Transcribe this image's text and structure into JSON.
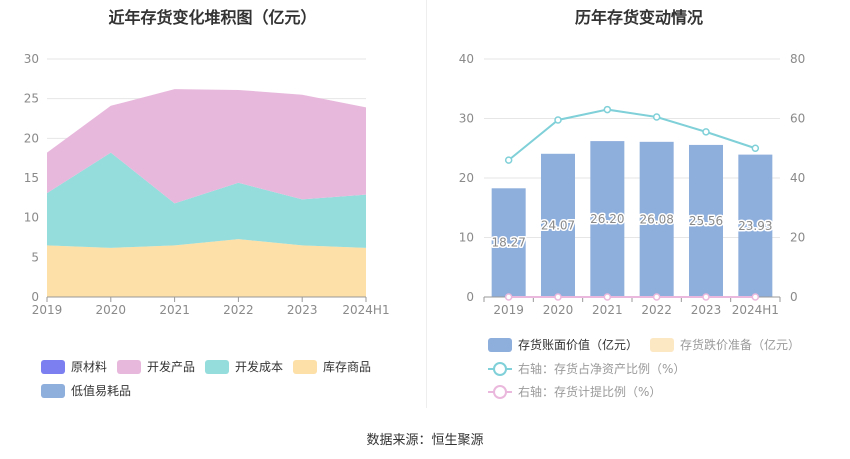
{
  "left_chart_title": "近年存货变化堆积图（亿元）",
  "right_chart_title": "历年存货变动情况",
  "source_text": "数据来源：恒生聚源",
  "chart_data": [
    {
      "type": "area",
      "stacked": true,
      "title": "近年存货变化堆积图（亿元）",
      "categories": [
        "2019",
        "2020",
        "2021",
        "2022",
        "2023",
        "2024H1"
      ],
      "ylim": [
        0,
        30
      ],
      "yticks": [
        0,
        5,
        10,
        15,
        20,
        25,
        30
      ],
      "grid": true,
      "legend_position": "bottom",
      "series": [
        {
          "name": "原材料",
          "color": "#7b7ff0",
          "values": [
            0,
            0,
            0,
            0,
            0,
            0
          ]
        },
        {
          "name": "开发产品",
          "color": "#e7b8dc",
          "values": [
            5.1,
            5.9,
            14.4,
            11.7,
            13.2,
            11.0
          ]
        },
        {
          "name": "开发成本",
          "color": "#95dcdc",
          "values": [
            6.6,
            12.0,
            5.3,
            7.1,
            5.8,
            6.7
          ]
        },
        {
          "name": "库存商品",
          "color": "#fde0a8",
          "values": [
            6.5,
            6.2,
            6.5,
            7.3,
            6.5,
            6.2
          ]
        },
        {
          "name": "低值易耗品",
          "color": "#8eaedc",
          "values": [
            0,
            0,
            0,
            0,
            0,
            0
          ]
        }
      ],
      "stack_order": [
        "库存商品",
        "开发成本",
        "开发产品",
        "原材料",
        "低值易耗品"
      ]
    },
    {
      "type": "bar",
      "title": "历年存货变动情况",
      "categories": [
        "2019",
        "2020",
        "2021",
        "2022",
        "2023",
        "2024H1"
      ],
      "ylim": [
        0,
        40
      ],
      "yticks": [
        0,
        10,
        20,
        30,
        40
      ],
      "y2lim": [
        0,
        80
      ],
      "y2ticks": [
        0,
        20,
        40,
        60,
        80
      ],
      "grid": true,
      "legend_position": "bottom",
      "series": [
        {
          "name": "存货账面价值（亿元）",
          "axis": "left",
          "kind": "bar",
          "color": "#8eaedc",
          "values": [
            18.27,
            24.07,
            26.2,
            26.08,
            25.56,
            23.93
          ],
          "labels": [
            "18.27",
            "24.07",
            "26.20",
            "26.08",
            "25.56",
            "23.93"
          ]
        },
        {
          "name": "存货跌价准备（亿元）",
          "axis": "left",
          "kind": "bar",
          "color": "#fde8c4",
          "values": [
            0,
            0,
            0,
            0,
            0,
            0
          ]
        },
        {
          "name": "右轴：存货占净资产比例（%）",
          "axis": "right",
          "kind": "line",
          "color": "#7fd0d8",
          "values": [
            46,
            59.5,
            63,
            60.5,
            55.5,
            50
          ]
        },
        {
          "name": "右轴：存货计提比例（%）",
          "axis": "right",
          "kind": "line",
          "color": "#eab8dc",
          "values": [
            0,
            0,
            0,
            0,
            0,
            0
          ]
        }
      ]
    }
  ]
}
